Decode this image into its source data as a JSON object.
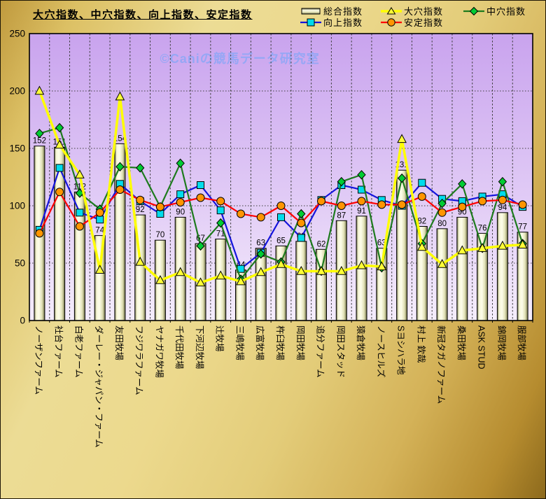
{
  "title": "大穴指数、中穴指数、向上指数、安定指数",
  "watermark": "©Caniの競馬データ研究室",
  "legend": {
    "bar_label": "総合指数",
    "line_labels": [
      "大穴指数",
      "中穴指数",
      "向上指数",
      "安定指数"
    ]
  },
  "chart_data": {
    "type": "bar",
    "subtype": "bar+line-combo",
    "title": "大穴指数、中穴指数、向上指数、安定指数",
    "xlabel": "",
    "ylabel": "",
    "ylim": [
      0,
      250
    ],
    "yticks": [
      0,
      50,
      100,
      150,
      200,
      250
    ],
    "grid": true,
    "legend_position": "top",
    "categories": [
      "ノーザンファーム",
      "社台ファーム",
      "白老ファーム",
      "ダーレー・ジャパン・ファーム",
      "友田牧場",
      "フジワラファーム",
      "ヤナガワ牧場",
      "千代田牧場",
      "下河辺牧場",
      "辻牧場",
      "三嶋牧場",
      "広富牧場",
      "杵臼牧場",
      "岡田牧場",
      "追分ファーム",
      "岡田スタッド",
      "猿倉牧場",
      "ノースヒルズ",
      "Sヨシハラ地",
      "村上 欽哉",
      "新冠タガノファーム",
      "桑田牧場",
      "ASK STUD",
      "錦岡牧場",
      "服部牧場"
    ],
    "bar_series": {
      "name": "総合指数",
      "values": [
        152,
        151,
        112,
        74,
        154,
        92,
        70,
        90,
        67,
        71,
        44,
        63,
        65,
        69,
        62,
        87,
        91,
        63,
        131,
        82,
        80,
        90,
        76,
        94,
        77
      ],
      "show_value_labels": true
    },
    "line_series": [
      {
        "name": "大穴指数",
        "marker": "triangle",
        "line_color": "#ffff00",
        "marker_color": "#ffff38",
        "line_width": 3.5,
        "values": [
          200,
          153,
          127,
          44,
          195,
          51,
          35,
          42,
          33,
          39,
          34,
          42,
          49,
          43,
          43,
          43,
          48,
          47,
          158,
          64,
          49,
          61,
          63,
          65,
          66
        ]
      },
      {
        "name": "中穴指数",
        "marker": "diamond",
        "line_color": "#1e7b1e",
        "marker_color": "#00cc33",
        "line_width": 2.2,
        "values": [
          163,
          168,
          111,
          97,
          134,
          133,
          99,
          137,
          65,
          85,
          36,
          58,
          51,
          93,
          43,
          121,
          127,
          46,
          124,
          67,
          102,
          119,
          63,
          121,
          67
        ]
      },
      {
        "name": "向上指数",
        "marker": "square",
        "line_color": "#1414dd",
        "marker_color": "#00dcec",
        "line_width": 2.2,
        "values": [
          79,
          133,
          94,
          88,
          119,
          104,
          93,
          110,
          118,
          96,
          45,
          59,
          90,
          72,
          105,
          118,
          114,
          105,
          100,
          120,
          106,
          104,
          108,
          110,
          99
        ]
      },
      {
        "name": "安定指数",
        "marker": "circle",
        "line_color": "#ff0000",
        "marker_color": "#ff9500",
        "line_width": 2.2,
        "values": [
          76,
          112,
          82,
          94,
          114,
          105,
          99,
          103,
          107,
          104,
          93,
          90,
          100,
          85,
          104,
          100,
          104,
          101,
          101,
          108,
          94,
          99,
          104,
          105,
          101
        ]
      }
    ],
    "draw_order_of_lines": [
      "向上指数",
      "中穴指数",
      "安定指数",
      "大穴指数"
    ]
  },
  "colors": {
    "plot_bg_top": "#c9a3ee",
    "plot_bg_mid": "#e2cdf6",
    "plot_bg_bottom": "#f5edfc",
    "grid_line": "#3f3f3f",
    "axis_border": "#000000",
    "bar_edge_dark": "#6e6e46",
    "bar_light": "#f6f6d6",
    "bar_lightest": "#fdfdea",
    "bar_mid": "#e0e0b4",
    "watermark": "#96a7f5",
    "value_label": "#000000",
    "tick_label": "#000000"
  }
}
